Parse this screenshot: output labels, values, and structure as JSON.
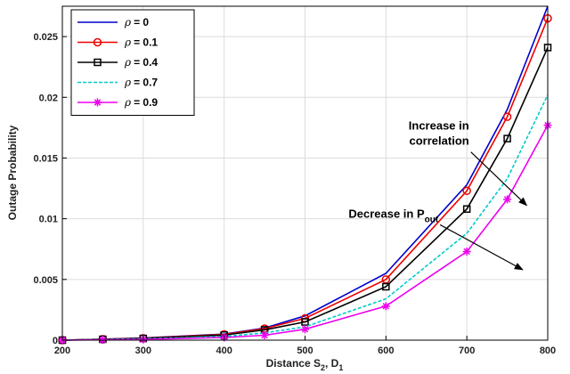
{
  "chart_data": {
    "type": "line",
    "title": "",
    "xlabel": {
      "main": "Distance S",
      "sub1": "2",
      "mid": ", D",
      "sub2": "1"
    },
    "ylabel": "Outage Probability",
    "xlim": [
      200,
      800
    ],
    "ylim": [
      0,
      0.0275
    ],
    "grid": true,
    "legend_position": "top-left",
    "x_ticks": [
      "200",
      "300",
      "400",
      "500",
      "600",
      "700",
      "800"
    ],
    "y_ticks": [
      "0",
      "0.005",
      "0.01",
      "0.015",
      "0.02",
      "0.025"
    ],
    "x": [
      200,
      250,
      300,
      400,
      450,
      500,
      600,
      700,
      750,
      800
    ],
    "series": [
      {
        "name": "= 0",
        "symbol": "ρ",
        "color": "#0000cc",
        "marker": "none",
        "dash": "",
        "values": [
          0.0,
          8e-05,
          0.00018,
          0.0005,
          0.001,
          0.002,
          0.0055,
          0.0128,
          0.019,
          0.0275
        ]
      },
      {
        "name": "= 0.1",
        "symbol": "ρ",
        "color": "#ee0000",
        "marker": "circle",
        "dash": "",
        "values": [
          0.0,
          8e-05,
          0.00016,
          0.00048,
          0.00095,
          0.0018,
          0.005,
          0.0123,
          0.0184,
          0.0265
        ]
      },
      {
        "name": "= 0.4",
        "symbol": "ρ",
        "color": "#000000",
        "marker": "square",
        "dash": "",
        "values": [
          0.0,
          7e-05,
          0.00014,
          0.00042,
          0.00085,
          0.0015,
          0.0044,
          0.0108,
          0.0166,
          0.0241
        ]
      },
      {
        "name": "= 0.7",
        "symbol": "ρ",
        "color": "#00cccc",
        "marker": "none",
        "dash": "4,2",
        "values": [
          0.0,
          5e-05,
          0.0001,
          0.0003,
          0.0006,
          0.0011,
          0.0034,
          0.0088,
          0.0133,
          0.0202
        ]
      },
      {
        "name": "= 0.9",
        "symbol": "ρ",
        "color": "#ee00ee",
        "marker": "asterisk",
        "dash": "",
        "values": [
          0.0,
          3e-05,
          6e-05,
          0.00022,
          0.0004,
          0.0009,
          0.0028,
          0.0073,
          0.0116,
          0.0177
        ]
      }
    ],
    "annotations": [
      {
        "lines": [
          "Increase in",
          "correlation"
        ],
        "from": [
          705,
          0.0155
        ],
        "to": [
          774,
          0.0111
        ]
      },
      {
        "lines": [
          "Decrease in P"
        ],
        "sub": "out",
        "from": [
          667,
          0.0095
        ],
        "to": [
          769,
          0.0058
        ]
      }
    ]
  }
}
